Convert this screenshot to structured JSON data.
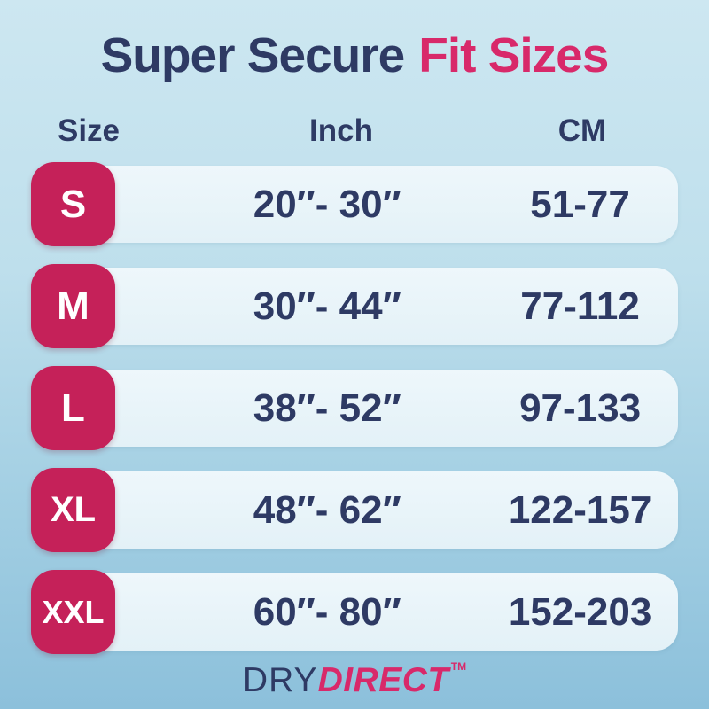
{
  "title": {
    "part1": "Super Secure",
    "part2": "Fit Sizes"
  },
  "columns": {
    "size": "Size",
    "inch": "Inch",
    "cm": "CM"
  },
  "rows": [
    {
      "size": "S",
      "inch": "20″- 30″",
      "cm": "51-77"
    },
    {
      "size": "M",
      "inch": "30″- 44″",
      "cm": "77-112"
    },
    {
      "size": "L",
      "inch": "38″- 52″",
      "cm": "97-133"
    },
    {
      "size": "XL",
      "inch": "48″- 62″",
      "cm": "122-157"
    },
    {
      "size": "XXL",
      "inch": "60″- 80″",
      "cm": "152-203"
    }
  ],
  "brand": {
    "part1": "DRY",
    "part2": "DIRECT",
    "tm": "TM"
  },
  "colors": {
    "navy_text": "#2e3a64",
    "pink_accent": "#d8296a",
    "badge_pink": "#c52159",
    "bg_top": "#cde7f1",
    "bg_bottom": "#8cc0db",
    "bar_fill": "#e9f4f9"
  },
  "chart_data": {
    "type": "table",
    "title": "Super Secure Fit Sizes",
    "columns": [
      "Size",
      "Inch",
      "CM"
    ],
    "rows": [
      [
        "S",
        "20″- 30″",
        "51-77"
      ],
      [
        "M",
        "30″- 44″",
        "77-112"
      ],
      [
        "L",
        "38″- 52″",
        "97-133"
      ],
      [
        "XL",
        "48″- 62″",
        "122-157"
      ],
      [
        "XXL",
        "60″- 80″",
        "152-203"
      ]
    ],
    "inch_ranges": [
      [
        20,
        30
      ],
      [
        30,
        44
      ],
      [
        38,
        52
      ],
      [
        48,
        62
      ],
      [
        60,
        80
      ]
    ],
    "cm_ranges": [
      [
        51,
        77
      ],
      [
        77,
        112
      ],
      [
        97,
        133
      ],
      [
        122,
        157
      ],
      [
        152,
        203
      ]
    ],
    "footer_brand": "DRYDIRECT"
  }
}
